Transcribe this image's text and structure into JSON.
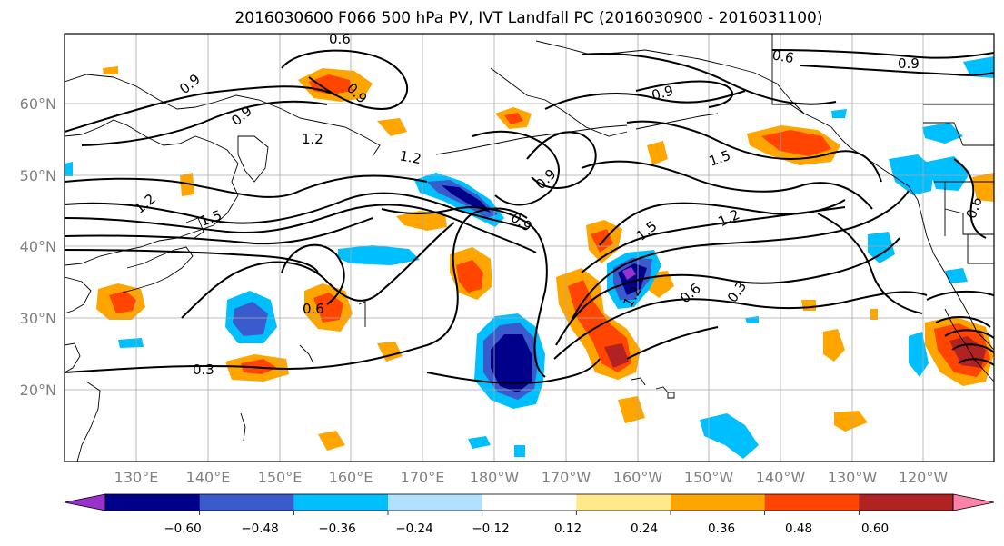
{
  "map": {
    "title": "2016030600 F066 500 hPa PV, IVT Landfall PC (2016030900 - 2016031100)",
    "lat_labels": [
      "60°N",
      "50°N",
      "40°N",
      "30°N",
      "20°N"
    ],
    "lon_labels": [
      "130°E",
      "140°E",
      "150°E",
      "160°E",
      "170°E",
      "180°W",
      "170°W",
      "160°W",
      "150°W",
      "140°W",
      "130°W",
      "120°W"
    ],
    "contour_labels": [
      "0.6",
      "0.9",
      "0.9",
      "1.2",
      "1.2",
      "1.2",
      "1.5",
      "1.5",
      "0.9",
      "0.9",
      "0.9",
      "0.6",
      "0.9",
      "1.5",
      "1.2",
      "0.3",
      "0.6",
      "0.6",
      "0.3",
      "0.6",
      "1.2",
      "0.9"
    ]
  },
  "colorbar": {
    "colors": [
      "#9932cc",
      "#00008b",
      "#3a5bcd",
      "#00bfff",
      "#b0e2ff",
      "#ffffff",
      "#ffe98a",
      "#ffa500",
      "#ff4500",
      "#b22222",
      "#ff82ab"
    ],
    "labels": [
      "−0.60",
      "−0.48",
      "−0.36",
      "−0.24",
      "−0.12",
      "0.12",
      "0.24",
      "0.36",
      "0.48",
      "0.60"
    ]
  }
}
